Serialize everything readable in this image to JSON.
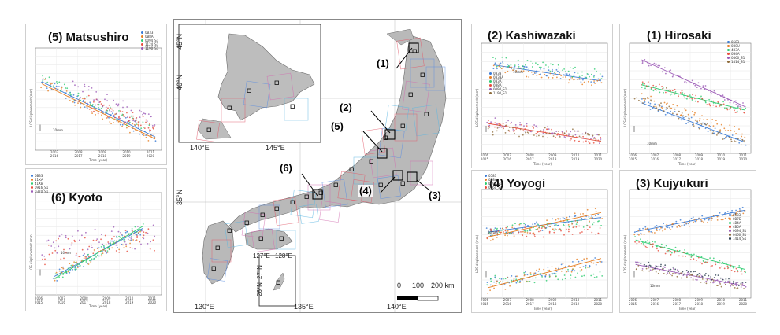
{
  "main_map": {
    "lon_ticks": [
      "130°E",
      "135°E",
      "140°E"
    ],
    "lat_ticks": [
      "35°N"
    ],
    "inset_north": {
      "lon_ticks": [
        "140°E",
        "145°E"
      ],
      "lat_ticks": [
        "40°N",
        "45°N"
      ]
    },
    "inset_south": {
      "lon_ticks": [
        "127°E",
        "128°E"
      ],
      "lat_ticks": [
        "26°N",
        "27°N"
      ]
    },
    "scale_bar": {
      "labels": [
        "0",
        "100",
        "200 km"
      ]
    },
    "callouts": [
      "(1)",
      "(2)",
      "(5)",
      "(6)",
      "(4)",
      "(3)"
    ]
  },
  "panels": {
    "matsushiro": {
      "title": "(5) Matsushiro",
      "legend": [
        {
          "label": "0B33",
          "color": "#3a7bd5"
        },
        {
          "label": "0B8A",
          "color": "#e67e22"
        },
        {
          "label": "0094_S1",
          "color": "#2ecc71"
        },
        {
          "label": "1124_S1",
          "color": "#e74c3c"
        },
        {
          "label": "1190_S1",
          "color": "#9b59b6"
        }
      ],
      "ylabel": "LOS displacement (mm)",
      "xlabel": "Time (year)",
      "scale_note": "10mm",
      "x_ticks": [
        "2007\n2016",
        "2008\n2017",
        "2009\n2018",
        "2010\n2019",
        "2011\n2020"
      ]
    },
    "kyoto": {
      "title": "(6) Kyoto",
      "legend": [
        {
          "label": "0B33",
          "color": "#3a7bd5"
        },
        {
          "label": "41XA",
          "color": "#e67e22"
        },
        {
          "label": "41XB",
          "color": "#2ecc71"
        },
        {
          "label": "0916_S1",
          "color": "#e74c3c"
        },
        {
          "label": "0370_S1",
          "color": "#9b59b6"
        }
      ],
      "ylabel": "LOS displacement (mm)",
      "xlabel": "Time (year)",
      "scale_note": "10mm",
      "x_ticks": [
        "2006\n2015",
        "2007\n2016",
        "2008\n2017",
        "2009\n2018",
        "2010\n2019",
        "2011\n2020"
      ]
    },
    "kashiwazaki": {
      "title": "(2) Kashiwazaki",
      "legend": [
        {
          "label": "0B33",
          "color": "#3a7bd5"
        },
        {
          "label": "0B33A",
          "color": "#e67e22"
        },
        {
          "label": "0B3A",
          "color": "#2ecc71"
        },
        {
          "label": "0B8A",
          "color": "#e74c3c"
        },
        {
          "label": "0094_S1",
          "color": "#9b59b6"
        },
        {
          "label": "1190_S1",
          "color": "#8e6b3a"
        }
      ],
      "ylabel": "LOS displacement (mm)",
      "xlabel": "Time (year)",
      "scale_note": "10mm",
      "x_ticks": [
        "2006\n2015",
        "2007\n2016",
        "2008\n2017",
        "2009\n2018",
        "2010\n2019",
        "2011\n2020"
      ]
    },
    "hirosaki": {
      "title": "(1) Hirosaki",
      "legend": [
        {
          "label": "0583",
          "color": "#3a7bd5"
        },
        {
          "label": "0B8U",
          "color": "#e67e22"
        },
        {
          "label": "4B3A",
          "color": "#2ecc71"
        },
        {
          "label": "0B4A",
          "color": "#e74c3c"
        },
        {
          "label": "0460_S1",
          "color": "#9b59b6"
        },
        {
          "label": "1414_S1",
          "color": "#8e6b3a"
        }
      ],
      "ylabel": "LOS displacement (mm)",
      "xlabel": "Time (year)",
      "scale_note": "10mm",
      "x_ticks": [
        "2006\n2015",
        "2007\n2016",
        "2008\n2017",
        "2009\n2018",
        "2010\n2019",
        "2011\n2020"
      ]
    },
    "yoyogi": {
      "title": "(4) Yoyogi",
      "legend": [
        {
          "label": "0583",
          "color": "#3a7bd5"
        },
        {
          "label": "0B8A",
          "color": "#e67e22"
        },
        {
          "label": "0094_S1",
          "color": "#2ecc71"
        },
        {
          "label": "0460_S1",
          "color": "#e74c3c"
        }
      ],
      "ylabel": "LOS displacement (mm)",
      "xlabel": "Time (year)",
      "scale_note": "10mm",
      "x_ticks": [
        "2006\n2015",
        "2007\n2016",
        "2008\n2017",
        "2009\n2018",
        "2010\n2019",
        "2011\n2020"
      ]
    },
    "kujyukuri": {
      "title": "(3) Kujyukuri",
      "legend": [
        {
          "label": "0583",
          "color": "#3a7bd5"
        },
        {
          "label": "0B7D",
          "color": "#e67e22"
        },
        {
          "label": "4B4A",
          "color": "#2ecc71"
        },
        {
          "label": "4B5A",
          "color": "#e74c3c"
        },
        {
          "label": "0094_S1",
          "color": "#9b59b6"
        },
        {
          "label": "0460_S1",
          "color": "#8e6b3a"
        },
        {
          "label": "1414_S1",
          "color": "#2c3e50"
        }
      ],
      "ylabel": "LOS displacement (mm)",
      "xlabel": "Time (year)",
      "scale_note": "10mm",
      "x_ticks": [
        "2006\n2015",
        "2007\n2016",
        "2008\n2017",
        "2009\n2018",
        "2010\n2019",
        "2011\n2020"
      ]
    }
  }
}
